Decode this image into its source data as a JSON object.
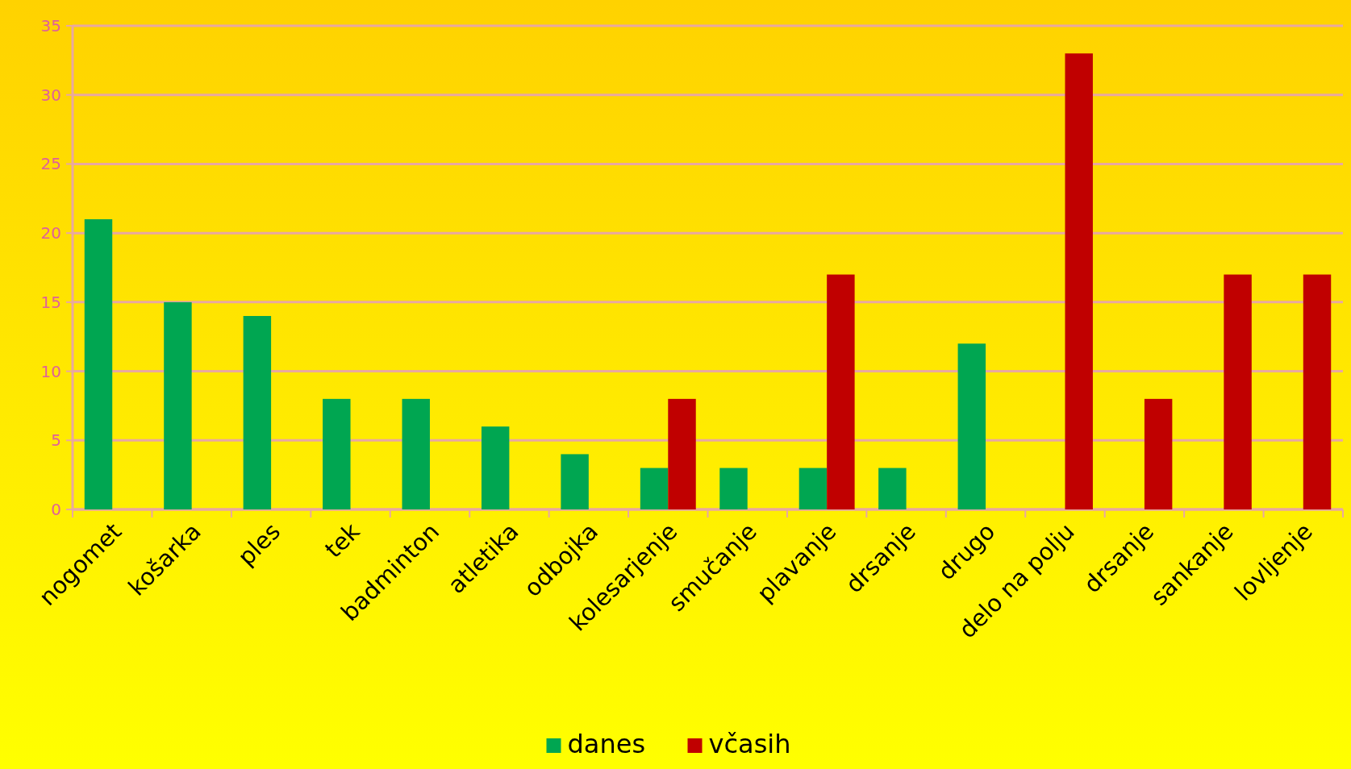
{
  "chart_data": {
    "type": "bar",
    "categories": [
      "nogomet",
      "košarka",
      "ples",
      "tek",
      "badminton",
      "atletika",
      "odbojka",
      "kolesarjenje",
      "smučanje",
      "plavanje",
      "drsanje",
      "drugo",
      "delo na polju",
      "drsanje",
      "sankanje",
      "lovljenje"
    ],
    "series": [
      {
        "name": "danes",
        "color": "#00a651",
        "values": [
          21,
          15,
          14,
          8,
          8,
          6,
          4,
          3,
          3,
          3,
          3,
          12,
          0,
          0,
          0,
          0
        ]
      },
      {
        "name": "včasih",
        "color": "#c00000",
        "values": [
          0,
          0,
          0,
          0,
          0,
          0,
          0,
          8,
          0,
          17,
          0,
          0,
          33,
          8,
          17,
          17
        ]
      }
    ],
    "ylim": [
      0,
      35
    ],
    "yticks": [
      0,
      5,
      10,
      15,
      20,
      25,
      30,
      35
    ],
    "grid": "y",
    "legend": "bottom"
  }
}
